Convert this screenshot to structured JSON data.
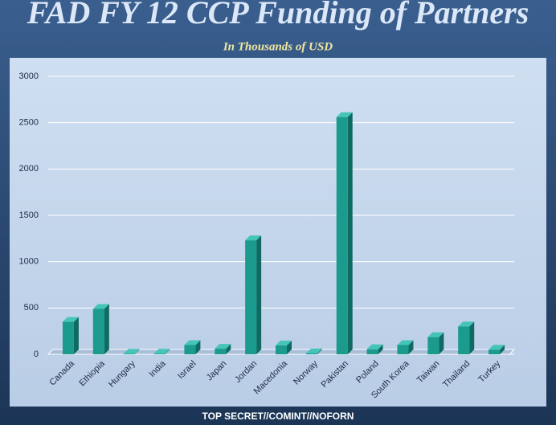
{
  "chart_data": {
    "type": "bar3d",
    "title": "FAD FY 12 CCP Funding of Partners",
    "subtitle": "In Thousands  of USD",
    "categories": [
      "Canada",
      "Ethiopia",
      "Hungary",
      "India",
      "Israel",
      "Japan",
      "Jordan",
      "Macedonia",
      "Norway",
      "Pakistan",
      "Poland",
      "South Korea",
      "Taiwan",
      "Thailand",
      "Turkey"
    ],
    "values": [
      350,
      490,
      5,
      5,
      100,
      60,
      1230,
      95,
      10,
      2560,
      55,
      100,
      185,
      300,
      50
    ],
    "color": "#1b9a8e",
    "ylim": [
      0,
      3000
    ],
    "yticks": [
      0,
      500,
      1000,
      1500,
      2000,
      2500,
      3000
    ],
    "grid": true
  },
  "footer": "TOP SECRET//COMINT//NOFORN"
}
